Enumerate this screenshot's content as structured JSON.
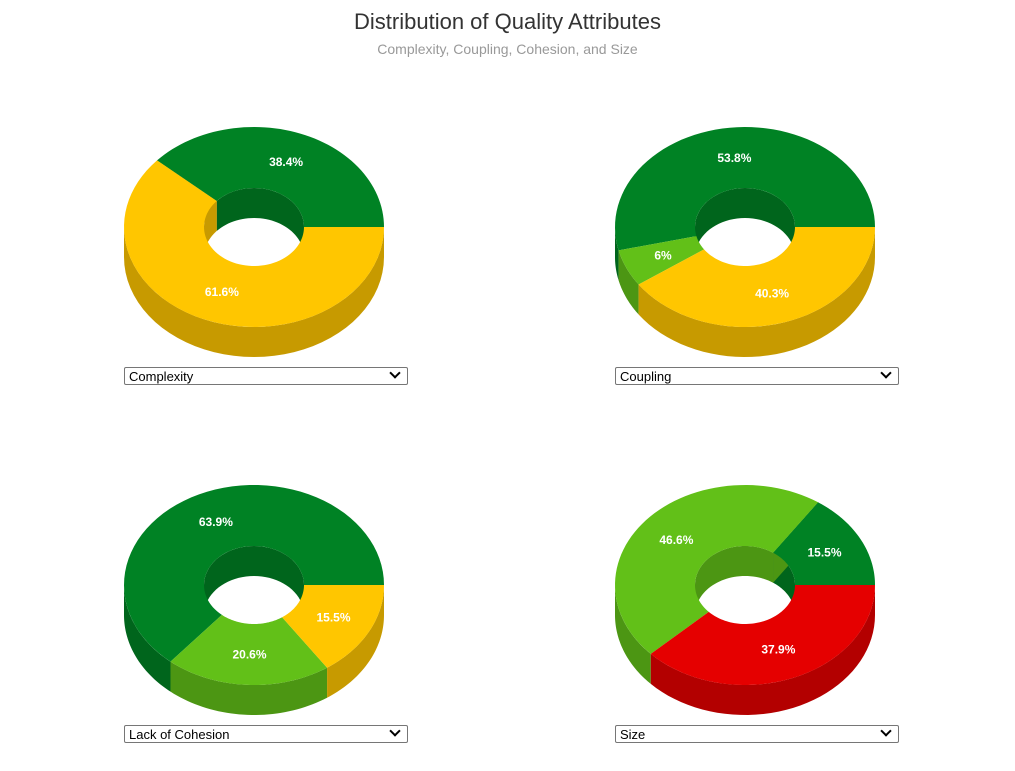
{
  "header": {
    "title": "Distribution of Quality Attributes",
    "subtitle": "Complexity, Coupling, Cohesion, and Size"
  },
  "colors": {
    "dark_green": "#008224",
    "light_green": "#62c018",
    "yellow": "#ffc600",
    "red": "#e50000"
  },
  "chart_data": [
    {
      "type": "pie",
      "style": "3d-donut",
      "selected_metric": "Complexity",
      "slices": [
        {
          "value": 38.4,
          "label": "38.4%",
          "color": "#008224"
        },
        {
          "value": 61.6,
          "label": "61.6%",
          "color": "#ffc600"
        }
      ]
    },
    {
      "type": "pie",
      "style": "3d-donut",
      "selected_metric": "Coupling",
      "slices": [
        {
          "value": 53.8,
          "label": "53.8%",
          "color": "#008224"
        },
        {
          "value": 6,
          "label": "6%",
          "color": "#62c018"
        },
        {
          "value": 40.3,
          "label": "40.3%",
          "color": "#ffc600"
        }
      ]
    },
    {
      "type": "pie",
      "style": "3d-donut",
      "selected_metric": "Lack of Cohesion",
      "slices": [
        {
          "value": 63.9,
          "label": "63.9%",
          "color": "#008224"
        },
        {
          "value": 20.6,
          "label": "20.6%",
          "color": "#62c018"
        },
        {
          "value": 15.5,
          "label": "15.5%",
          "color": "#ffc600"
        }
      ]
    },
    {
      "type": "pie",
      "style": "3d-donut",
      "selected_metric": "Size",
      "slices": [
        {
          "value": 15.5,
          "label": "15.5%",
          "color": "#008224"
        },
        {
          "value": 46.6,
          "label": "46.6%",
          "color": "#62c018"
        },
        {
          "value": 37.9,
          "label": "37.9%",
          "color": "#e50000"
        }
      ]
    }
  ]
}
